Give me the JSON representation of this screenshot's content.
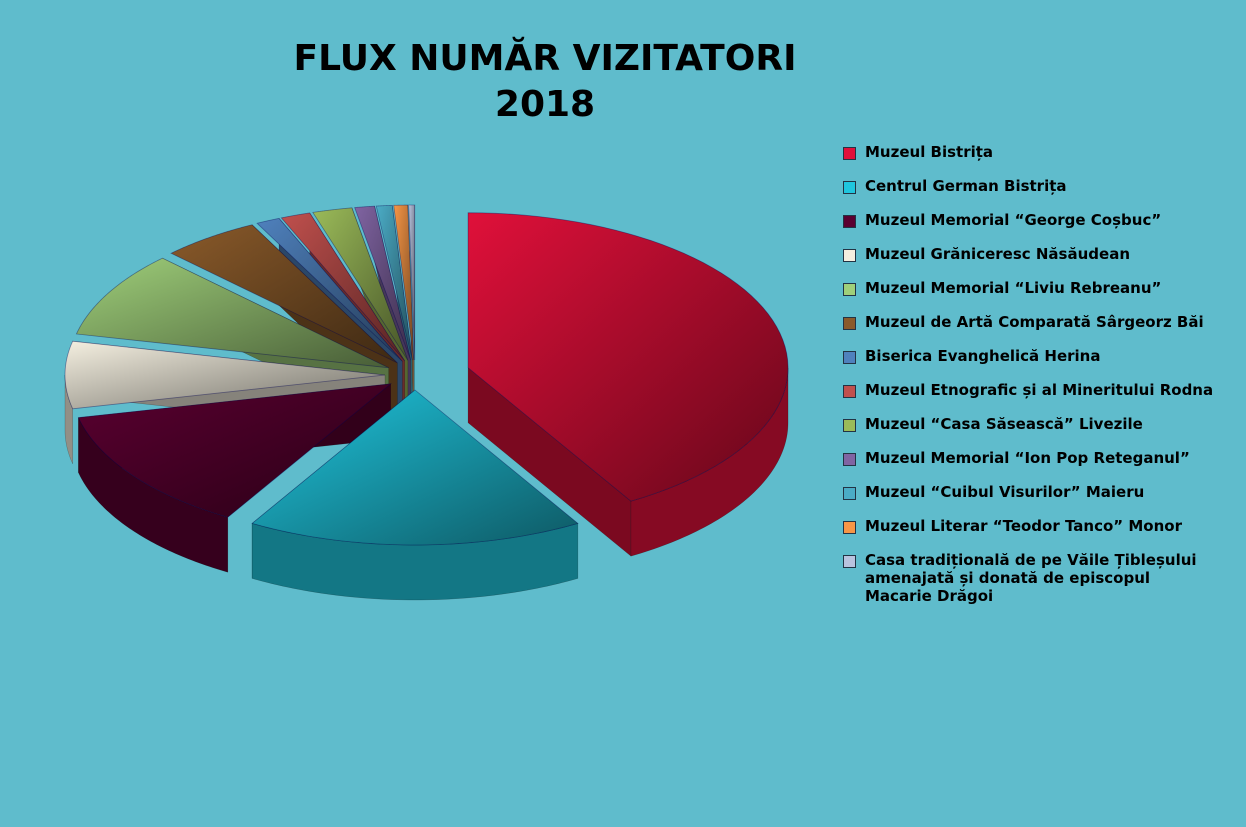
{
  "chart_data": {
    "type": "pie3d",
    "title": "FLUX NUMĂR VIZITATORI",
    "subtitle": "2018",
    "categories": [
      "Muzeul Bistrița",
      "Centrul German Bistrița",
      "Muzeul Memorial “George Coșbuc”",
      "Muzeul Grăniceresc Năsăudean",
      "Muzeul Memorial “Liviu Rebreanu”",
      "Muzeul de Artă Comparată Sârgeorz Băi",
      "Biserica Evanghelică Herina",
      "Muzeul Etnografic și al Mineritului Rodna",
      "Muzeul “Casa Săsească” Livezile",
      "Muzeul Memorial “Ion Pop Reteganul”",
      "Muzeul “Cuibul Visurilor” Maieru",
      "Muzeul Literar “Teodor Tanco” Monor",
      "Casa tradițională de pe Văile Țibleșului amenajată și donată de episcopul Macarie Drăgoi"
    ],
    "values": [
      41.5,
      17,
      13,
      7,
      9,
      5,
      1.2,
      1.5,
      2,
      1,
      0.8,
      0.7,
      0.3
    ],
    "colors": [
      "#e0103a",
      "#1fc6de",
      "#5a0030",
      "#f4efe0",
      "#9fcf7a",
      "#8a5a2a",
      "#4f81bd",
      "#c0504d",
      "#9bbb59",
      "#8064a2",
      "#4bacc6",
      "#f79646",
      "#b9c3de"
    ],
    "legend": "right"
  }
}
